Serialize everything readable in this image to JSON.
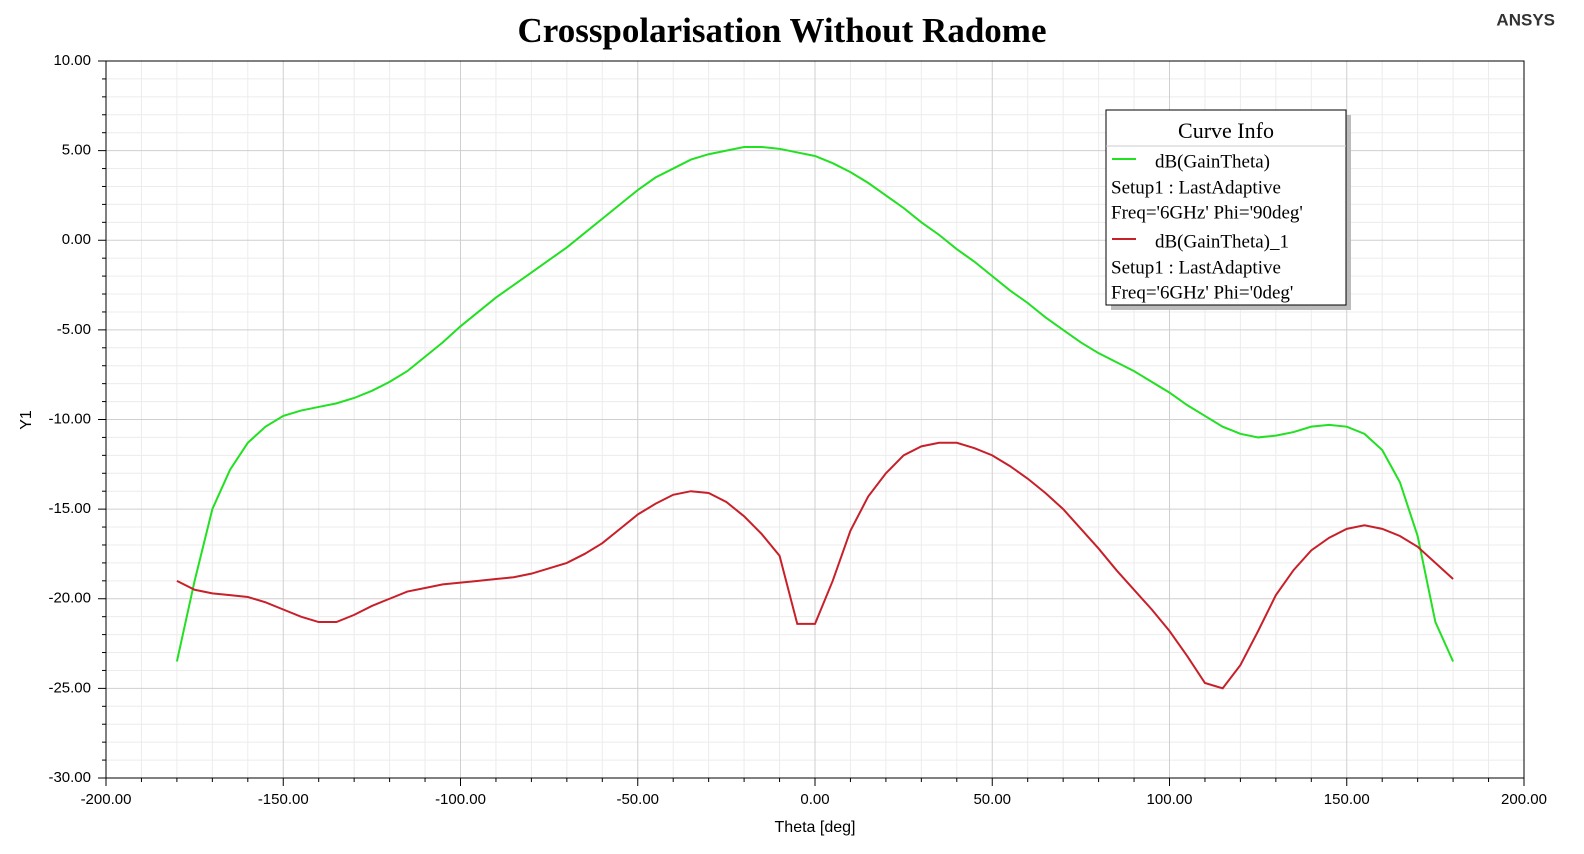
{
  "chart_data": {
    "type": "line",
    "title": "Crosspolarisation Without Radome",
    "brand": "ANSYS",
    "xlabel": "Theta [deg]",
    "ylabel": "Y1",
    "legend_title": "Curve Info",
    "grid": true,
    "minor_divisions": 5,
    "xlim": [
      -200,
      200
    ],
    "ylim": [
      -30,
      10
    ],
    "xticks": [
      {
        "value": -200,
        "label": "-200.00"
      },
      {
        "value": -150,
        "label": "-150.00"
      },
      {
        "value": -100,
        "label": "-100.00"
      },
      {
        "value": -50,
        "label": "-50.00"
      },
      {
        "value": 0,
        "label": "0.00"
      },
      {
        "value": 50,
        "label": "50.00"
      },
      {
        "value": 100,
        "label": "100.00"
      },
      {
        "value": 150,
        "label": "150.00"
      },
      {
        "value": 200,
        "label": "200.00"
      }
    ],
    "yticks": [
      {
        "value": -30,
        "label": "-30.00"
      },
      {
        "value": -25,
        "label": "-25.00"
      },
      {
        "value": -20,
        "label": "-20.00"
      },
      {
        "value": -15,
        "label": "-15.00"
      },
      {
        "value": -10,
        "label": "-10.00"
      },
      {
        "value": -5,
        "label": "-5.00"
      },
      {
        "value": 0,
        "label": "0.00"
      },
      {
        "value": 5,
        "label": "5.00"
      },
      {
        "value": 10,
        "label": "10.00"
      }
    ],
    "x": [
      -180,
      -175,
      -170,
      -165,
      -160,
      -155,
      -150,
      -145,
      -140,
      -135,
      -130,
      -125,
      -120,
      -115,
      -110,
      -105,
      -100,
      -95,
      -90,
      -85,
      -80,
      -75,
      -70,
      -65,
      -60,
      -55,
      -50,
      -45,
      -40,
      -35,
      -30,
      -25,
      -20,
      -15,
      -10,
      -5,
      0,
      5,
      10,
      15,
      20,
      25,
      30,
      35,
      40,
      45,
      50,
      55,
      60,
      65,
      70,
      75,
      80,
      85,
      90,
      95,
      100,
      105,
      110,
      115,
      120,
      125,
      130,
      135,
      140,
      145,
      150,
      155,
      160,
      165,
      170,
      175,
      180
    ],
    "series": [
      {
        "name": "dB(GainTheta)",
        "setup": "Setup1 : LastAdaptive",
        "variation": "Freq='6GHz' Phi='90deg'",
        "color": "#22e022",
        "values": [
          -23.5,
          -19.0,
          -15.0,
          -12.8,
          -11.3,
          -10.4,
          -9.8,
          -9.5,
          -9.3,
          -9.1,
          -8.8,
          -8.4,
          -7.9,
          -7.3,
          -6.5,
          -5.7,
          -4.8,
          -4.0,
          -3.2,
          -2.5,
          -1.8,
          -1.1,
          -0.4,
          0.4,
          1.2,
          2.0,
          2.8,
          3.5,
          4.0,
          4.5,
          4.8,
          5.0,
          5.2,
          5.2,
          5.1,
          4.9,
          4.7,
          4.3,
          3.8,
          3.2,
          2.5,
          1.8,
          1.0,
          0.3,
          -0.5,
          -1.2,
          -2.0,
          -2.8,
          -3.5,
          -4.3,
          -5.0,
          -5.7,
          -6.3,
          -6.8,
          -7.3,
          -7.9,
          -8.5,
          -9.2,
          -9.8,
          -10.4,
          -10.8,
          -11.0,
          -10.9,
          -10.7,
          -10.4,
          -10.3,
          -10.4,
          -10.8,
          -11.7,
          -13.5,
          -16.5,
          -21.3,
          -23.5
        ]
      },
      {
        "name": "dB(GainTheta)_1",
        "setup": "Setup1 : LastAdaptive",
        "variation": "Freq='6GHz' Phi='0deg'",
        "color": "#c8202a",
        "values": [
          -19.0,
          -19.5,
          -19.7,
          -19.8,
          -19.9,
          -20.2,
          -20.6,
          -21.0,
          -21.3,
          -21.3,
          -20.9,
          -20.4,
          -20.0,
          -19.6,
          -19.4,
          -19.2,
          -19.1,
          -19.0,
          -18.9,
          -18.8,
          -18.6,
          -18.3,
          -18.0,
          -17.5,
          -16.9,
          -16.1,
          -15.3,
          -14.7,
          -14.2,
          -14.0,
          -14.1,
          -14.6,
          -15.4,
          -16.4,
          -17.6,
          -21.4,
          -21.4,
          -19.0,
          -16.2,
          -14.3,
          -13.0,
          -12.0,
          -11.5,
          -11.3,
          -11.3,
          -11.6,
          -12.0,
          -12.6,
          -13.3,
          -14.1,
          -15.0,
          -16.1,
          -17.2,
          -18.4,
          -19.5,
          -20.6,
          -21.8,
          -23.2,
          -24.7,
          -25.0,
          -23.7,
          -21.8,
          -19.8,
          -18.4,
          -17.3,
          -16.6,
          -16.1,
          -15.9,
          -16.1,
          -16.5,
          -17.1,
          -18.0,
          -18.9
        ]
      }
    ]
  }
}
